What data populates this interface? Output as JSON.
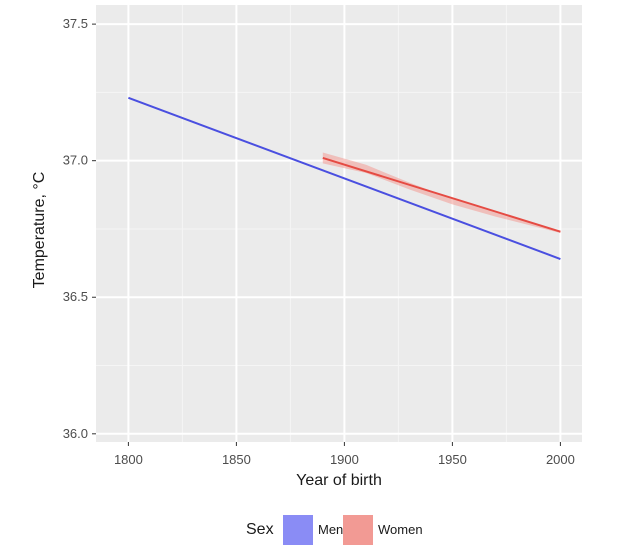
{
  "chart_data": {
    "type": "line",
    "title": "",
    "xlabel": "Year of birth",
    "ylabel": "Temperature, °C",
    "xlim": [
      1785,
      2010
    ],
    "ylim": [
      35.97,
      37.57
    ],
    "x_ticks": [
      1800,
      1850,
      1900,
      1950,
      2000
    ],
    "y_ticks": [
      36.0,
      36.5,
      37.0,
      37.5
    ],
    "x_tick_labels": [
      "1800",
      "1850",
      "1900",
      "1950",
      "2000"
    ],
    "y_tick_labels": [
      "36.0",
      "36.5",
      "37.0",
      "37.5"
    ],
    "grid": true,
    "legend_position": "bottom",
    "legend_title": "Sex",
    "series": [
      {
        "name": "Men",
        "color": "#4a4fe0",
        "fill_color": "#8a8cf5",
        "x": [
          1800,
          2000
        ],
        "y": [
          37.23,
          36.64
        ],
        "ci_band": null
      },
      {
        "name": "Women",
        "color": "#e54b43",
        "fill_color": "#f29a94",
        "x": [
          1890,
          2000
        ],
        "y": [
          37.01,
          36.74
        ],
        "ci_band": {
          "x": [
            1890,
            1910,
            1930,
            1950,
            1970,
            2000
          ],
          "lower": [
            36.99,
            36.955,
            36.895,
            36.84,
            36.795,
            36.735
          ],
          "upper": [
            37.03,
            36.985,
            36.92,
            36.86,
            36.81,
            36.74
          ]
        }
      }
    ]
  }
}
